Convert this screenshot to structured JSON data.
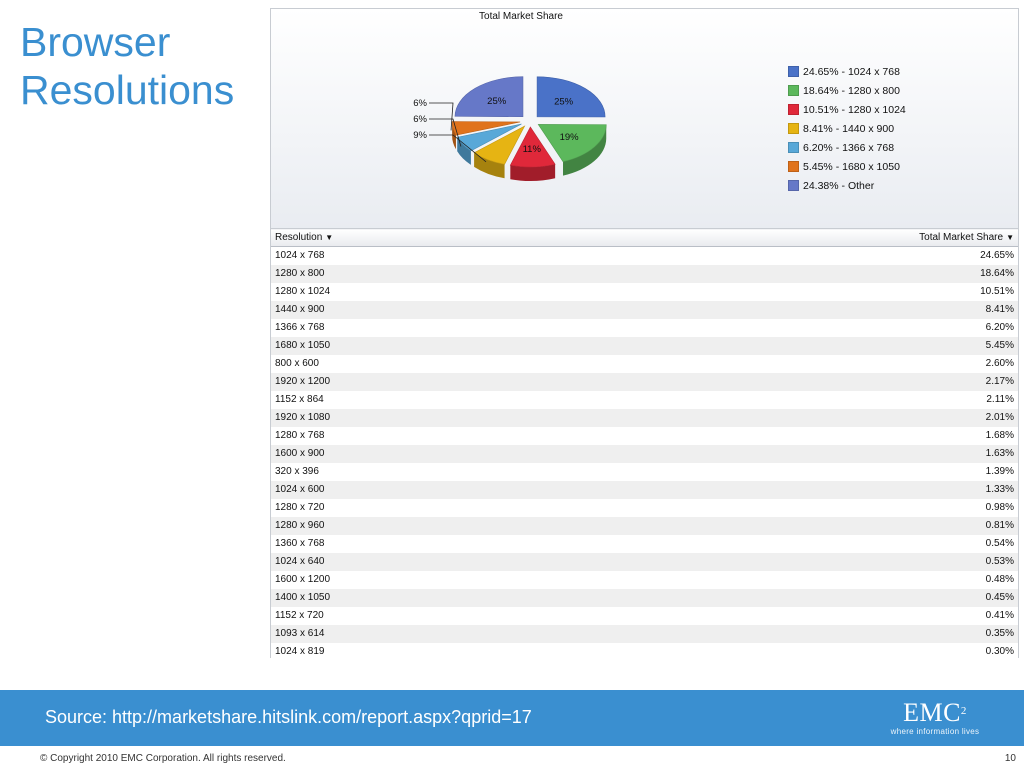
{
  "slide": {
    "title_line1": "Browser",
    "title_line2": "Resolutions"
  },
  "chart_data": {
    "type": "pie",
    "title": "Total Market Share",
    "slices": [
      {
        "legend": "24.65% - 1024 x 768",
        "label": "25%",
        "value": 24.65,
        "color": "#4a72c8"
      },
      {
        "legend": "18.64% - 1280 x 800",
        "label": "19%",
        "value": 18.64,
        "color": "#5cb85c"
      },
      {
        "legend": "10.51% - 1280 x 1024",
        "label": "11%",
        "value": 10.51,
        "color": "#e0283a"
      },
      {
        "legend": "8.41% - 1440 x 900",
        "label": "9%",
        "value": 8.41,
        "color": "#e6b413"
      },
      {
        "legend": "6.20% - 1366 x 768",
        "label": "6%",
        "value": 6.2,
        "color": "#58a8d8"
      },
      {
        "legend": "5.45% - 1680 x 1050",
        "label": "6%",
        "value": 5.45,
        "color": "#e0731c"
      },
      {
        "legend": "24.38% - Other",
        "label": "25%",
        "value": 24.38,
        "color": "#6678c8"
      }
    ]
  },
  "table": {
    "col_resolution": "Resolution",
    "col_share": "Total Market Share",
    "rows": [
      [
        "1024 x 768",
        "24.65%"
      ],
      [
        "1280 x 800",
        "18.64%"
      ],
      [
        "1280 x 1024",
        "10.51%"
      ],
      [
        "1440 x 900",
        "8.41%"
      ],
      [
        "1366 x 768",
        "6.20%"
      ],
      [
        "1680 x 1050",
        "5.45%"
      ],
      [
        "800 x 600",
        "2.60%"
      ],
      [
        "1920 x 1200",
        "2.17%"
      ],
      [
        "1152 x 864",
        "2.11%"
      ],
      [
        "1920 x 1080",
        "2.01%"
      ],
      [
        "1280 x 768",
        "1.68%"
      ],
      [
        "1600 x 900",
        "1.63%"
      ],
      [
        "320 x 396",
        "1.39%"
      ],
      [
        "1024 x 600",
        "1.33%"
      ],
      [
        "1280 x 720",
        "0.98%"
      ],
      [
        "1280 x 960",
        "0.81%"
      ],
      [
        "1360 x 768",
        "0.54%"
      ],
      [
        "1024 x 640",
        "0.53%"
      ],
      [
        "1600 x 1200",
        "0.48%"
      ],
      [
        "1400 x 1050",
        "0.45%"
      ],
      [
        "1152 x 720",
        "0.41%"
      ],
      [
        "1093 x 614",
        "0.35%"
      ],
      [
        "1024 x 819",
        "0.30%"
      ]
    ]
  },
  "footer": {
    "source": "Source: http://marketshare.hitslink.com/report.aspx?qprid=17",
    "logo_text": "EMC",
    "logo_sup": "2",
    "logo_tagline": "where information lives",
    "copyright": "© Copyright 2010 EMC Corporation. All rights reserved.",
    "page_number": "10"
  }
}
